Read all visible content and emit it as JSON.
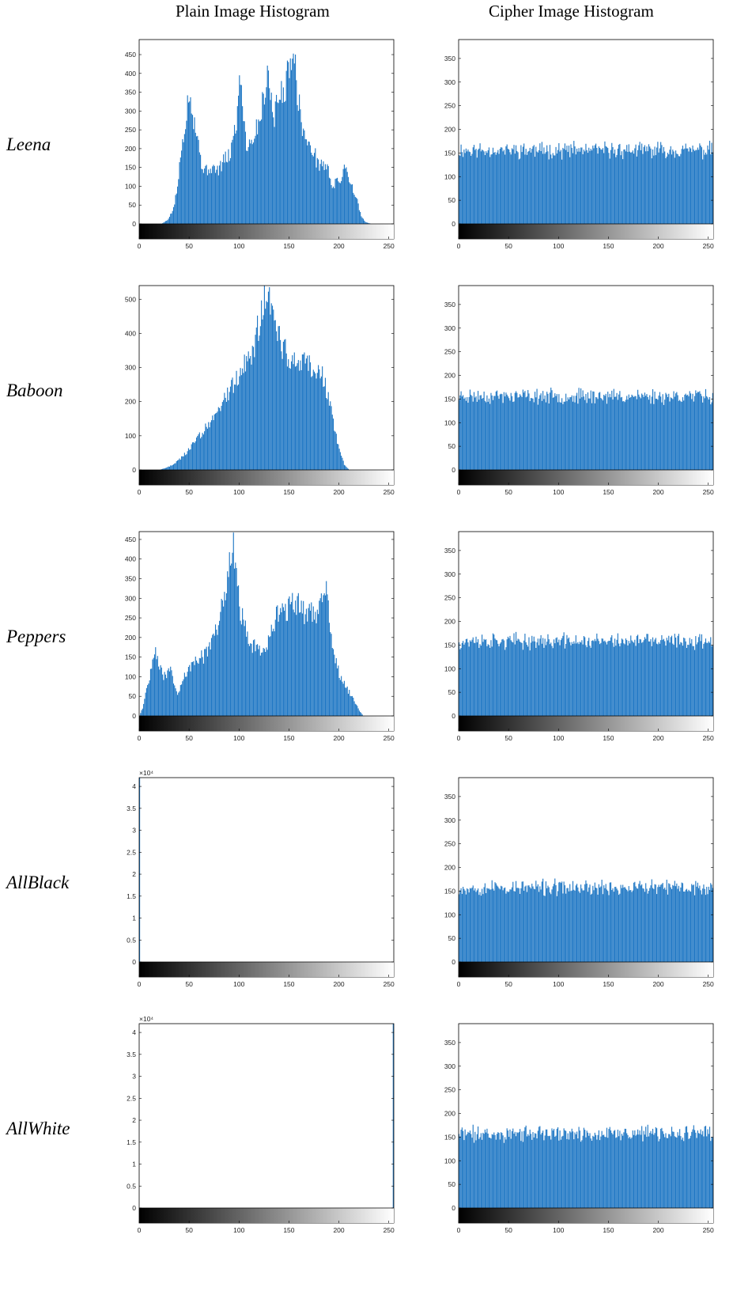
{
  "headers": {
    "plain": "Plain Image Histogram",
    "cipher": "Cipher Image Histogram"
  },
  "rows": [
    {
      "label": "Leena"
    },
    {
      "label": "Baboon"
    },
    {
      "label": "Peppers"
    },
    {
      "label": "AllBlack"
    },
    {
      "label": "AllWhite"
    }
  ],
  "colors": {
    "bar": "#1f77c4",
    "axis": "#000000"
  },
  "chart_data": [
    {
      "id": "leena-plain",
      "type": "bar",
      "title": "",
      "xlabel": "",
      "ylabel": "",
      "xlim": [
        0,
        255
      ],
      "ylim": [
        0,
        490
      ],
      "xticks": [
        0,
        50,
        100,
        150,
        200,
        250
      ],
      "yticks": [
        0,
        50,
        100,
        150,
        200,
        250,
        300,
        350,
        400,
        450
      ],
      "ytick_labels": [
        "0",
        "50",
        "100",
        "150",
        "200",
        "250",
        "300",
        "350",
        "400",
        "450"
      ],
      "exponent": "",
      "envelope": [
        [
          0,
          0
        ],
        [
          22,
          0
        ],
        [
          28,
          10
        ],
        [
          34,
          40
        ],
        [
          38,
          100
        ],
        [
          42,
          200
        ],
        [
          46,
          280
        ],
        [
          50,
          360
        ],
        [
          53,
          300
        ],
        [
          58,
          230
        ],
        [
          62,
          160
        ],
        [
          66,
          140
        ],
        [
          72,
          150
        ],
        [
          78,
          140
        ],
        [
          85,
          170
        ],
        [
          90,
          180
        ],
        [
          94,
          230
        ],
        [
          98,
          290
        ],
        [
          100,
          410
        ],
        [
          103,
          330
        ],
        [
          107,
          210
        ],
        [
          112,
          220
        ],
        [
          118,
          260
        ],
        [
          122,
          300
        ],
        [
          126,
          370
        ],
        [
          128,
          420
        ],
        [
          131,
          340
        ],
        [
          135,
          290
        ],
        [
          140,
          340
        ],
        [
          144,
          350
        ],
        [
          148,
          390
        ],
        [
          152,
          460
        ],
        [
          154,
          480
        ],
        [
          157,
          380
        ],
        [
          160,
          310
        ],
        [
          163,
          260
        ],
        [
          167,
          220
        ],
        [
          170,
          200
        ],
        [
          174,
          200
        ],
        [
          178,
          160
        ],
        [
          183,
          160
        ],
        [
          188,
          150
        ],
        [
          193,
          100
        ],
        [
          197,
          110
        ],
        [
          202,
          120
        ],
        [
          206,
          160
        ],
        [
          210,
          120
        ],
        [
          214,
          90
        ],
        [
          218,
          60
        ],
        [
          222,
          20
        ],
        [
          226,
          5
        ],
        [
          232,
          0
        ],
        [
          255,
          0
        ]
      ]
    },
    {
      "id": "leena-cipher",
      "type": "bar",
      "title": "",
      "xlabel": "",
      "ylabel": "",
      "xlim": [
        0,
        255
      ],
      "ylim": [
        0,
        390
      ],
      "xticks": [
        0,
        50,
        100,
        150,
        200,
        250
      ],
      "yticks": [
        0,
        50,
        100,
        150,
        200,
        250,
        300,
        350
      ],
      "ytick_labels": [
        "0",
        "50",
        "100",
        "150",
        "200",
        "250",
        "300",
        "350"
      ],
      "exponent": "",
      "uniform_mean": 156,
      "noise": 14,
      "seed": 11
    },
    {
      "id": "baboon-plain",
      "type": "bar",
      "title": "",
      "xlabel": "",
      "ylabel": "",
      "xlim": [
        0,
        255
      ],
      "ylim": [
        0,
        540
      ],
      "xticks": [
        0,
        50,
        100,
        150,
        200,
        250
      ],
      "yticks": [
        0,
        100,
        200,
        300,
        400,
        500
      ],
      "ytick_labels": [
        "0",
        "100",
        "200",
        "300",
        "400",
        "500"
      ],
      "exponent": "",
      "envelope": [
        [
          0,
          0
        ],
        [
          20,
          0
        ],
        [
          30,
          10
        ],
        [
          40,
          30
        ],
        [
          50,
          60
        ],
        [
          60,
          100
        ],
        [
          70,
          140
        ],
        [
          80,
          180
        ],
        [
          90,
          230
        ],
        [
          100,
          280
        ],
        [
          110,
          330
        ],
        [
          116,
          370
        ],
        [
          120,
          440
        ],
        [
          124,
          500
        ],
        [
          127,
          520
        ],
        [
          130,
          480
        ],
        [
          134,
          440
        ],
        [
          140,
          380
        ],
        [
          146,
          350
        ],
        [
          152,
          330
        ],
        [
          158,
          320
        ],
        [
          164,
          320
        ],
        [
          170,
          310
        ],
        [
          175,
          300
        ],
        [
          180,
          300
        ],
        [
          185,
          260
        ],
        [
          190,
          200
        ],
        [
          195,
          120
        ],
        [
          200,
          60
        ],
        [
          205,
          15
        ],
        [
          210,
          0
        ],
        [
          255,
          0
        ]
      ]
    },
    {
      "id": "baboon-cipher",
      "type": "bar",
      "title": "",
      "xlabel": "",
      "ylabel": "",
      "xlim": [
        0,
        255
      ],
      "ylim": [
        0,
        390
      ],
      "xticks": [
        0,
        50,
        100,
        150,
        200,
        250
      ],
      "yticks": [
        0,
        50,
        100,
        150,
        200,
        250,
        300,
        350
      ],
      "ytick_labels": [
        "0",
        "50",
        "100",
        "150",
        "200",
        "250",
        "300",
        "350"
      ],
      "exponent": "",
      "uniform_mean": 156,
      "noise": 13,
      "seed": 23
    },
    {
      "id": "peppers-plain",
      "type": "bar",
      "title": "",
      "xlabel": "",
      "ylabel": "",
      "xlim": [
        0,
        255
      ],
      "ylim": [
        0,
        470
      ],
      "xticks": [
        0,
        50,
        100,
        150,
        200,
        250
      ],
      "yticks": [
        0,
        50,
        100,
        150,
        200,
        250,
        300,
        350,
        400,
        450
      ],
      "ytick_labels": [
        "0",
        "50",
        "100",
        "150",
        "200",
        "250",
        "300",
        "350",
        "400",
        "450"
      ],
      "exponent": "",
      "envelope": [
        [
          0,
          0
        ],
        [
          3,
          20
        ],
        [
          8,
          80
        ],
        [
          12,
          120
        ],
        [
          16,
          160
        ],
        [
          20,
          130
        ],
        [
          24,
          100
        ],
        [
          28,
          110
        ],
        [
          30,
          120
        ],
        [
          34,
          90
        ],
        [
          38,
          60
        ],
        [
          42,
          80
        ],
        [
          46,
          110
        ],
        [
          52,
          130
        ],
        [
          58,
          150
        ],
        [
          64,
          150
        ],
        [
          70,
          170
        ],
        [
          75,
          210
        ],
        [
          80,
          250
        ],
        [
          84,
          300
        ],
        [
          88,
          360
        ],
        [
          92,
          430
        ],
        [
          94,
          455
        ],
        [
          97,
          360
        ],
        [
          100,
          280
        ],
        [
          104,
          250
        ],
        [
          108,
          200
        ],
        [
          112,
          180
        ],
        [
          118,
          170
        ],
        [
          124,
          170
        ],
        [
          128,
          180
        ],
        [
          132,
          220
        ],
        [
          137,
          250
        ],
        [
          142,
          260
        ],
        [
          147,
          270
        ],
        [
          152,
          280
        ],
        [
          157,
          290
        ],
        [
          162,
          270
        ],
        [
          167,
          260
        ],
        [
          172,
          270
        ],
        [
          178,
          260
        ],
        [
          183,
          290
        ],
        [
          186,
          340
        ],
        [
          189,
          280
        ],
        [
          192,
          200
        ],
        [
          196,
          140
        ],
        [
          200,
          110
        ],
        [
          205,
          80
        ],
        [
          210,
          60
        ],
        [
          215,
          40
        ],
        [
          220,
          15
        ],
        [
          224,
          0
        ],
        [
          255,
          0
        ]
      ]
    },
    {
      "id": "peppers-cipher",
      "type": "bar",
      "title": "",
      "xlabel": "",
      "ylabel": "",
      "xlim": [
        0,
        255
      ],
      "ylim": [
        0,
        390
      ],
      "xticks": [
        0,
        50,
        100,
        150,
        200,
        250
      ],
      "yticks": [
        0,
        50,
        100,
        150,
        200,
        250,
        300,
        350
      ],
      "ytick_labels": [
        "0",
        "50",
        "100",
        "150",
        "200",
        "250",
        "300",
        "350"
      ],
      "exponent": "",
      "uniform_mean": 158,
      "noise": 14,
      "seed": 37
    },
    {
      "id": "allblack-plain",
      "type": "bar",
      "title": "",
      "xlabel": "",
      "ylabel": "",
      "xlim": [
        0,
        255
      ],
      "ylim": [
        0,
        4.2
      ],
      "xticks": [
        0,
        50,
        100,
        150,
        200,
        250
      ],
      "yticks": [
        0,
        0.5,
        1,
        1.5,
        2,
        2.5,
        3,
        3.5,
        4
      ],
      "ytick_labels": [
        "0",
        "0.5",
        "1",
        "1.5",
        "2",
        "2.5",
        "3",
        "3.5",
        "4"
      ],
      "exponent": "×10⁴",
      "spikes": [
        [
          0,
          4.2
        ]
      ]
    },
    {
      "id": "allblack-cipher",
      "type": "bar",
      "title": "",
      "xlabel": "",
      "ylabel": "",
      "xlim": [
        0,
        255
      ],
      "ylim": [
        0,
        390
      ],
      "xticks": [
        0,
        50,
        100,
        150,
        200,
        250
      ],
      "yticks": [
        0,
        50,
        100,
        150,
        200,
        250,
        300,
        350
      ],
      "ytick_labels": [
        "0",
        "50",
        "100",
        "150",
        "200",
        "250",
        "300",
        "350"
      ],
      "exponent": "",
      "uniform_mean": 157,
      "noise": 14,
      "seed": 53
    },
    {
      "id": "allwhite-plain",
      "type": "bar",
      "title": "",
      "xlabel": "",
      "ylabel": "",
      "xlim": [
        0,
        255
      ],
      "ylim": [
        0,
        4.2
      ],
      "xticks": [
        0,
        50,
        100,
        150,
        200,
        250
      ],
      "yticks": [
        0,
        0.5,
        1,
        1.5,
        2,
        2.5,
        3,
        3.5,
        4
      ],
      "ytick_labels": [
        "0",
        "0.5",
        "1",
        "1.5",
        "2",
        "2.5",
        "3",
        "3.5",
        "4"
      ],
      "exponent": "×10⁴",
      "spikes": [
        [
          255,
          4.2
        ]
      ]
    },
    {
      "id": "allwhite-cipher",
      "type": "bar",
      "title": "",
      "xlabel": "",
      "ylabel": "",
      "xlim": [
        0,
        255
      ],
      "ylim": [
        0,
        390
      ],
      "xticks": [
        0,
        50,
        100,
        150,
        200,
        250
      ],
      "yticks": [
        0,
        50,
        100,
        150,
        200,
        250,
        300,
        350
      ],
      "ytick_labels": [
        "0",
        "50",
        "100",
        "150",
        "200",
        "250",
        "300",
        "350"
      ],
      "exponent": "",
      "uniform_mean": 157,
      "noise": 14,
      "seed": 71
    }
  ]
}
